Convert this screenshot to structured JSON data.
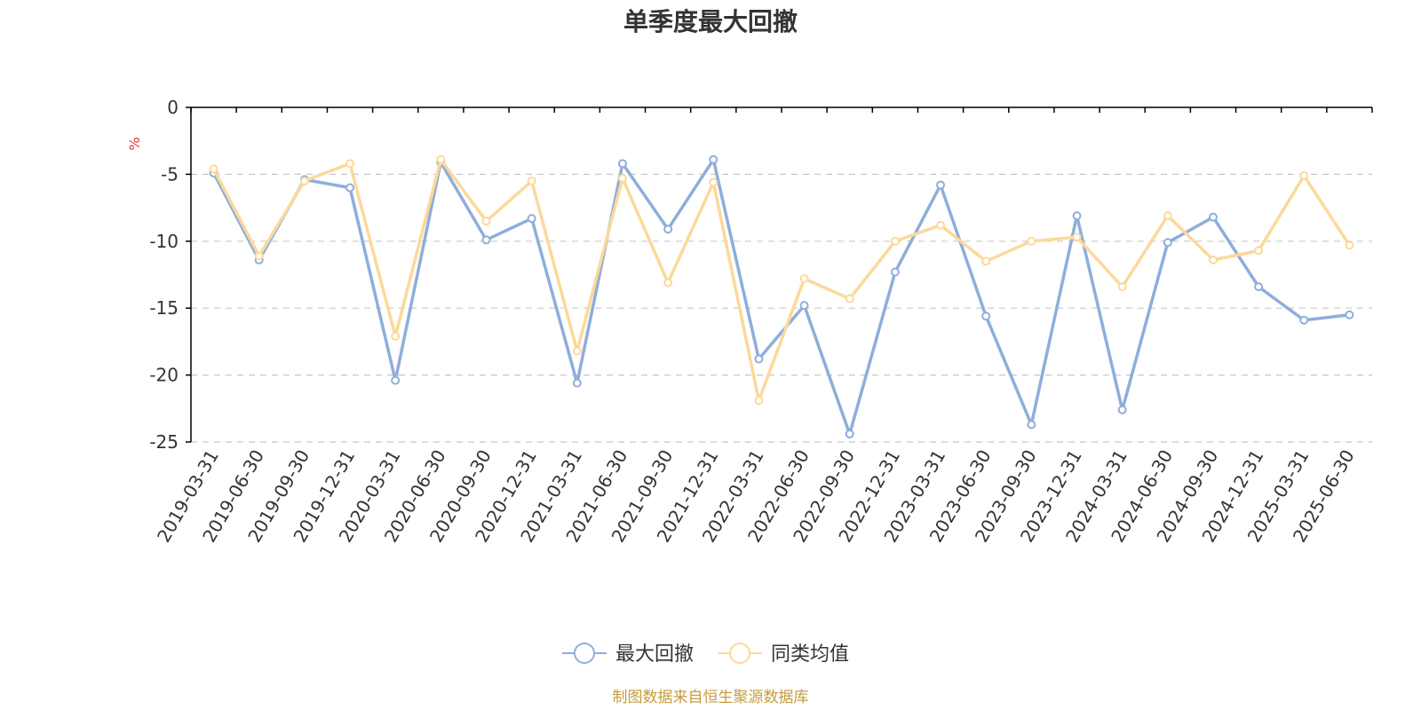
{
  "chart_data": {
    "type": "line",
    "title": "单季度最大回撤",
    "ylabel": "%",
    "ylim": [
      -25,
      0
    ],
    "yticks": [
      0,
      -5,
      -10,
      -15,
      -20,
      -25
    ],
    "grid": true,
    "legend_position": "bottom",
    "categories": [
      "2019-03-31",
      "2019-06-30",
      "2019-09-30",
      "2019-12-31",
      "2020-03-31",
      "2020-06-30",
      "2020-09-30",
      "2020-12-31",
      "2021-03-31",
      "2021-06-30",
      "2021-09-30",
      "2021-12-31",
      "2022-03-31",
      "2022-06-30",
      "2022-09-30",
      "2022-12-31",
      "2023-03-31",
      "2023-06-30",
      "2023-09-30",
      "2023-12-31",
      "2024-03-31",
      "2024-06-30",
      "2024-09-30",
      "2024-12-31",
      "2025-03-31",
      "2025-06-30"
    ],
    "series": [
      {
        "name": "最大回撤",
        "color": "#8eaedb",
        "values": [
          -4.9,
          -11.4,
          -5.4,
          -6.0,
          -20.4,
          -4.1,
          -9.9,
          -8.3,
          -20.6,
          -4.2,
          -9.1,
          -3.9,
          -18.8,
          -14.8,
          -24.4,
          -12.3,
          -5.8,
          -15.6,
          -23.7,
          -8.1,
          -22.6,
          -10.1,
          -8.2,
          -13.4,
          -15.9,
          -15.5
        ]
      },
      {
        "name": "同类均值",
        "color": "#fcd99a",
        "values": [
          -4.6,
          -11.1,
          -5.5,
          -4.2,
          -17.1,
          -3.9,
          -8.5,
          -5.5,
          -18.2,
          -5.3,
          -13.1,
          -5.6,
          -21.9,
          -12.8,
          -14.3,
          -10.0,
          -8.8,
          -11.5,
          -10.0,
          -9.7,
          -13.4,
          -8.1,
          -11.4,
          -10.7,
          -5.1,
          -10.3
        ]
      }
    ],
    "source": "制图数据来自恒生聚源数据库",
    "colors": {
      "axis": "#000000",
      "grid": "#c8c8c8",
      "unit": "#e53935",
      "source": "#c89b3c"
    }
  }
}
